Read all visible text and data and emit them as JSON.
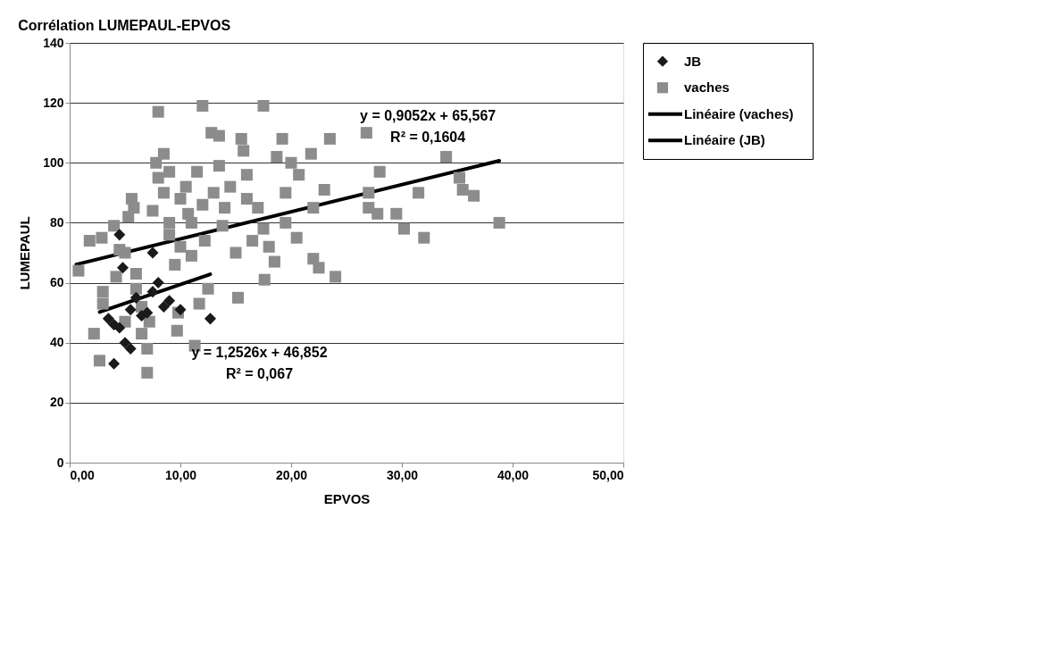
{
  "chart_data": {
    "type": "scatter",
    "title": "Corrélation LUMEPAUL-EPVOS",
    "xlabel": "EPVOS",
    "ylabel": "LUMEPAUL",
    "xlim": [
      0,
      50
    ],
    "ylim": [
      0,
      140
    ],
    "xticks": [
      {
        "value": 0,
        "label": "0,00"
      },
      {
        "value": 10,
        "label": "10,00"
      },
      {
        "value": 20,
        "label": "20,00"
      },
      {
        "value": 30,
        "label": "30,00"
      },
      {
        "value": 40,
        "label": "40,00"
      },
      {
        "value": 50,
        "label": "50,00"
      }
    ],
    "yticks": [
      0,
      20,
      40,
      60,
      80,
      100,
      120,
      140
    ],
    "grid": "y",
    "legend": "right",
    "series": [
      {
        "name": "JB",
        "type": "scatter",
        "marker": "diamond",
        "color": "#1a1a1a",
        "x": [
          4,
          4,
          4.5,
          5,
          5.5,
          5.5,
          6,
          6.5,
          7,
          7.5,
          8,
          8.5,
          9,
          10,
          12.7,
          4.5,
          7.5,
          4.8,
          3.5
        ],
        "values": [
          33,
          46,
          45,
          40,
          38,
          51,
          55,
          49,
          50,
          57,
          60,
          52,
          54,
          51,
          48,
          76,
          70,
          65,
          48
        ]
      },
      {
        "name": "vaches",
        "type": "scatter",
        "marker": "square",
        "color": "#8c8c8c",
        "x": [
          0.8,
          1.8,
          2.2,
          2.7,
          2.9,
          3,
          3,
          4,
          4.2,
          4.5,
          5,
          5,
          5.3,
          5.6,
          5.8,
          6,
          6,
          6.5,
          6.5,
          7,
          7,
          7.2,
          7.5,
          7.8,
          8,
          8,
          8.5,
          8.5,
          9,
          9,
          9,
          9.5,
          9.7,
          9.8,
          10,
          10,
          10.5,
          10.7,
          11,
          11,
          11.3,
          11.5,
          11.7,
          12,
          12,
          12.2,
          12.5,
          12.8,
          13,
          13.5,
          13.5,
          13.8,
          14,
          14.5,
          15,
          15.2,
          15.5,
          15.7,
          16,
          16,
          16.5,
          17,
          17.5,
          17.5,
          17.6,
          18,
          18.5,
          18.7,
          19.2,
          19.5,
          19.5,
          20,
          20.5,
          20.7,
          21.8,
          22,
          22,
          22.5,
          23,
          23.5,
          24,
          26.8,
          27,
          27,
          27.8,
          28,
          29.5,
          30.2,
          31.5,
          32,
          34,
          35.2,
          35.5,
          36.5,
          38.8
        ],
        "values": [
          64,
          74,
          43,
          34,
          75,
          57,
          53,
          79,
          62,
          71,
          70,
          47,
          82,
          88,
          85,
          63,
          58,
          52,
          43,
          30,
          38,
          47,
          84,
          100,
          117,
          95,
          103,
          90,
          97,
          80,
          76,
          66,
          44,
          50,
          88,
          72,
          92,
          83,
          80,
          69,
          39,
          97,
          53,
          119,
          86,
          74,
          58,
          110,
          90,
          109,
          99,
          79,
          85,
          92,
          70,
          55,
          108,
          104,
          96,
          88,
          74,
          85,
          119,
          78,
          61,
          72,
          67,
          102,
          108,
          90,
          80,
          100,
          75,
          96,
          103,
          85,
          68,
          65,
          91,
          108,
          62,
          110,
          90,
          85,
          83,
          97,
          83,
          78,
          90,
          75,
          102,
          95,
          91,
          89,
          80
        ]
      },
      {
        "name": "Linéaire (vaches)",
        "type": "line",
        "marker": "none",
        "color": "#000000",
        "x": [
          0.6,
          38.8
        ],
        "values": [
          66.1,
          100.7
        ]
      },
      {
        "name": "Linéaire (JB)",
        "type": "line",
        "marker": "none",
        "color": "#000000",
        "x": [
          2.7,
          12.7
        ],
        "values": [
          50.2,
          62.8
        ]
      }
    ],
    "annotations": [
      "y = 0,9052x + 65,567",
      "R² = 0,1604",
      "y = 1,2526x + 46,852",
      "R² = 0,067"
    ]
  }
}
